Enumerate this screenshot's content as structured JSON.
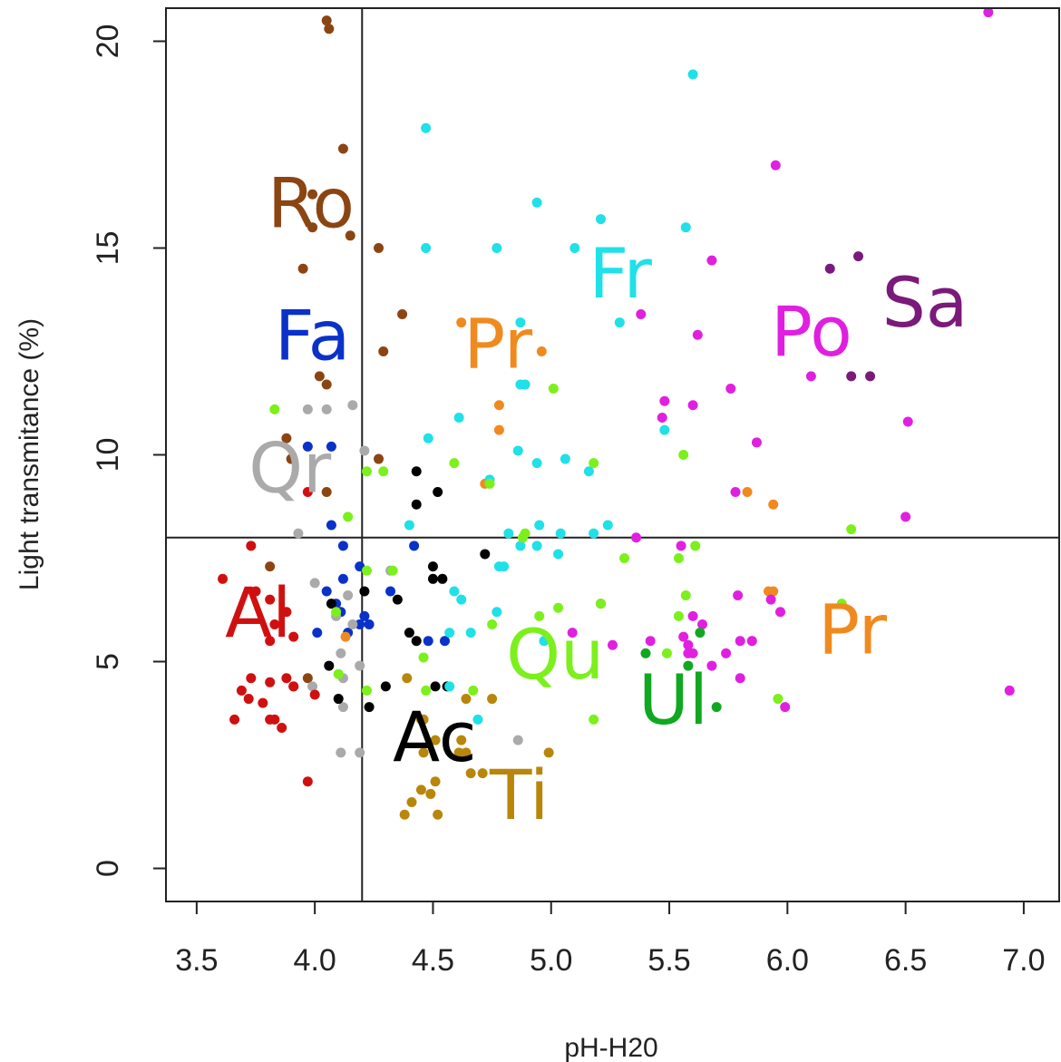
{
  "chart_data": {
    "type": "scatter",
    "xlabel": "pH-H20",
    "ylabel": "Light transmitance (%)",
    "xlim": [
      3.37,
      7.15
    ],
    "ylim": [
      -0.8,
      20.8
    ],
    "x_ticks": [
      "3.5",
      "4.0",
      "4.5",
      "5.0",
      "5.5",
      "6.0",
      "6.5",
      "7.0"
    ],
    "y_ticks": [
      "0",
      "5",
      "10",
      "15",
      "20"
    ],
    "reference_lines": {
      "x": 4.2,
      "y": 8.0
    },
    "grid": false,
    "legend": "none",
    "series": [
      {
        "name": "Ro",
        "color": "#8B4513",
        "label_at": [
          3.8,
          15.5
        ],
        "points": [
          [
            4.05,
            20.5
          ],
          [
            4.06,
            20.3
          ],
          [
            4.12,
            17.4
          ],
          [
            3.99,
            16.3
          ],
          [
            3.99,
            15.5
          ],
          [
            4.15,
            15.3
          ],
          [
            3.95,
            14.5
          ],
          [
            4.27,
            15.0
          ],
          [
            4.37,
            13.4
          ],
          [
            4.29,
            12.5
          ],
          [
            4.02,
            11.9
          ],
          [
            4.05,
            11.7
          ],
          [
            3.88,
            10.4
          ],
          [
            3.9,
            9.9
          ],
          [
            4.27,
            9.9
          ],
          [
            4.05,
            9.1
          ],
          [
            3.81,
            7.3
          ],
          [
            3.97,
            4.6
          ]
        ]
      },
      {
        "name": "Fa",
        "color": "#0A32C8",
        "label_at": [
          3.83,
          12.3
        ],
        "points": [
          [
            3.97,
            10.2
          ],
          [
            4.07,
            10.2
          ],
          [
            4.07,
            8.3
          ],
          [
            4.12,
            7.8
          ],
          [
            4.19,
            7.3
          ],
          [
            4.12,
            7.0
          ],
          [
            4.05,
            6.7
          ],
          [
            4.09,
            6.4
          ],
          [
            4.11,
            6.2
          ],
          [
            4.21,
            6.1
          ],
          [
            4.19,
            5.9
          ],
          [
            4.23,
            5.9
          ],
          [
            4.01,
            5.7
          ],
          [
            4.14,
            5.7
          ],
          [
            4.42,
            7.8
          ],
          [
            4.32,
            6.7
          ],
          [
            4.48,
            5.5
          ],
          [
            4.55,
            5.5
          ]
        ]
      },
      {
        "name": "Qr",
        "color": "#AAAAAA",
        "label_at": [
          3.72,
          9.1
        ],
        "points": [
          [
            4.05,
            11.1
          ],
          [
            3.97,
            11.1
          ],
          [
            4.16,
            11.2
          ],
          [
            4.21,
            10.1
          ],
          [
            3.93,
            8.1
          ],
          [
            4.0,
            6.9
          ],
          [
            4.14,
            6.6
          ],
          [
            4.09,
            6.1
          ],
          [
            4.16,
            5.9
          ],
          [
            4.11,
            5.2
          ],
          [
            4.12,
            4.6
          ],
          [
            4.19,
            4.9
          ],
          [
            3.99,
            4.4
          ],
          [
            4.12,
            3.9
          ],
          [
            4.11,
            2.8
          ],
          [
            4.19,
            2.8
          ],
          [
            4.86,
            3.1
          ],
          [
            4.32,
            7.2
          ]
        ]
      },
      {
        "name": "Al",
        "color": "#D01010",
        "label_at": [
          3.62,
          5.6
        ],
        "points": [
          [
            3.73,
            7.8
          ],
          [
            3.61,
            7.0
          ],
          [
            3.81,
            6.5
          ],
          [
            3.75,
            6.7
          ],
          [
            3.88,
            6.2
          ],
          [
            3.83,
            5.9
          ],
          [
            3.81,
            5.5
          ],
          [
            3.91,
            5.6
          ],
          [
            3.73,
            4.6
          ],
          [
            3.81,
            4.5
          ],
          [
            3.88,
            4.6
          ],
          [
            3.91,
            4.4
          ],
          [
            3.69,
            4.3
          ],
          [
            3.72,
            4.1
          ],
          [
            3.78,
            4.0
          ],
          [
            3.83,
            3.6
          ],
          [
            3.81,
            3.6
          ],
          [
            3.86,
            3.4
          ],
          [
            3.66,
            3.6
          ],
          [
            3.97,
            2.1
          ],
          [
            3.97,
            9.1
          ],
          [
            3.91,
            4.4
          ],
          [
            4.0,
            4.2
          ]
        ]
      },
      {
        "name": "Ac",
        "color": "#000000",
        "label_at": [
          4.33,
          2.6
        ],
        "points": [
          [
            4.43,
            9.6
          ],
          [
            4.52,
            9.1
          ],
          [
            4.43,
            8.8
          ],
          [
            4.72,
            7.6
          ],
          [
            4.5,
            7.3
          ],
          [
            4.5,
            7.0
          ],
          [
            4.54,
            7.0
          ],
          [
            4.21,
            6.7
          ],
          [
            4.35,
            6.5
          ],
          [
            4.07,
            6.4
          ],
          [
            4.4,
            5.7
          ],
          [
            4.06,
            4.9
          ],
          [
            4.3,
            4.4
          ],
          [
            4.51,
            4.4
          ],
          [
            4.56,
            4.4
          ],
          [
            4.1,
            4.1
          ],
          [
            4.23,
            3.9
          ],
          [
            4.43,
            5.5
          ]
        ]
      },
      {
        "name": "Ti",
        "color": "#B8860B",
        "label_at": [
          4.74,
          1.2
        ],
        "points": [
          [
            4.39,
            4.6
          ],
          [
            4.45,
            3.6
          ],
          [
            4.46,
            3.6
          ],
          [
            4.51,
            3.1
          ],
          [
            4.61,
            2.8
          ],
          [
            4.64,
            2.8
          ],
          [
            4.62,
            3.1
          ],
          [
            4.46,
            2.8
          ],
          [
            4.51,
            2.1
          ],
          [
            4.49,
            1.8
          ],
          [
            4.41,
            1.6
          ],
          [
            4.45,
            1.9
          ],
          [
            4.38,
            1.3
          ],
          [
            4.52,
            1.3
          ],
          [
            4.66,
            2.3
          ],
          [
            4.71,
            2.3
          ],
          [
            4.64,
            4.1
          ],
          [
            4.75,
            4.1
          ],
          [
            4.99,
            2.8
          ]
        ]
      },
      {
        "name": "Pr",
        "color": "#F08A1E",
        "label_at": [
          4.63,
          12.1
        ],
        "points": [
          [
            4.62,
            13.2
          ],
          [
            4.96,
            12.5
          ],
          [
            4.78,
            11.2
          ],
          [
            4.78,
            10.6
          ],
          [
            4.72,
            9.3
          ],
          [
            5.83,
            9.1
          ],
          [
            5.94,
            8.8
          ],
          [
            5.92,
            6.7
          ],
          [
            5.94,
            6.7
          ],
          [
            5.85,
            5.5
          ],
          [
            4.13,
            5.6
          ]
        ]
      },
      {
        "name": "Pr",
        "color": "#F08A1E",
        "label_at": [
          6.13,
          5.2
        ],
        "points": []
      },
      {
        "name": "Fr",
        "color": "#20E0E8",
        "label_at": [
          5.16,
          13.8
        ],
        "points": [
          [
            4.47,
            17.9
          ],
          [
            5.6,
            19.2
          ],
          [
            4.94,
            16.1
          ],
          [
            5.21,
            15.7
          ],
          [
            5.57,
            15.5
          ],
          [
            4.47,
            15.0
          ],
          [
            4.77,
            15.0
          ],
          [
            5.1,
            15.0
          ],
          [
            5.29,
            13.2
          ],
          [
            4.87,
            13.2
          ],
          [
            4.89,
            11.7
          ],
          [
            4.87,
            11.7
          ],
          [
            4.61,
            10.9
          ],
          [
            4.48,
            10.4
          ],
          [
            4.86,
            10.1
          ],
          [
            4.94,
            9.8
          ],
          [
            5.06,
            9.9
          ],
          [
            5.16,
            9.6
          ],
          [
            5.48,
            10.6
          ],
          [
            4.74,
            9.4
          ],
          [
            4.95,
            8.3
          ],
          [
            4.82,
            8.1
          ],
          [
            5.04,
            8.1
          ],
          [
            5.24,
            8.3
          ],
          [
            5.18,
            8.1
          ],
          [
            4.87,
            7.8
          ],
          [
            4.94,
            7.8
          ],
          [
            5.03,
            7.6
          ],
          [
            4.8,
            7.3
          ],
          [
            4.78,
            7.3
          ],
          [
            4.59,
            6.7
          ],
          [
            4.62,
            6.5
          ],
          [
            4.66,
            5.7
          ],
          [
            4.57,
            5.7
          ],
          [
            4.77,
            6.2
          ],
          [
            4.97,
            5.5
          ],
          [
            4.57,
            4.4
          ],
          [
            4.69,
            3.6
          ],
          [
            4.4,
            8.3
          ]
        ]
      },
      {
        "name": "Po",
        "color": "#E020E0",
        "label_at": [
          5.93,
          12.4
        ],
        "points": [
          [
            6.85,
            20.7
          ],
          [
            5.95,
            17.0
          ],
          [
            5.68,
            14.7
          ],
          [
            5.38,
            13.4
          ],
          [
            5.62,
            12.9
          ],
          [
            6.1,
            11.9
          ],
          [
            5.76,
            11.6
          ],
          [
            5.48,
            11.3
          ],
          [
            5.6,
            11.2
          ],
          [
            5.47,
            10.9
          ],
          [
            6.51,
            10.8
          ],
          [
            5.87,
            10.3
          ],
          [
            5.78,
            9.1
          ],
          [
            5.36,
            8.0
          ],
          [
            6.5,
            8.5
          ],
          [
            5.55,
            7.8
          ],
          [
            5.21,
            6.4
          ],
          [
            5.6,
            6.1
          ],
          [
            5.64,
            5.9
          ],
          [
            5.79,
            6.6
          ],
          [
            5.97,
            6.2
          ],
          [
            5.93,
            6.5
          ],
          [
            5.09,
            5.7
          ],
          [
            5.26,
            5.4
          ],
          [
            5.42,
            5.5
          ],
          [
            5.56,
            5.6
          ],
          [
            5.58,
            5.4
          ],
          [
            5.68,
            4.9
          ],
          [
            5.74,
            5.2
          ],
          [
            5.8,
            5.5
          ],
          [
            5.8,
            4.6
          ],
          [
            5.85,
            5.5
          ],
          [
            5.58,
            5.2
          ],
          [
            5.6,
            5.2
          ],
          [
            5.99,
            3.9
          ],
          [
            6.94,
            4.3
          ]
        ]
      },
      {
        "name": "Sa",
        "color": "#7A1A7A",
        "label_at": [
          6.4,
          13.1
        ],
        "points": [
          [
            6.3,
            14.8
          ],
          [
            6.18,
            14.5
          ],
          [
            6.27,
            11.9
          ],
          [
            6.35,
            11.9
          ]
        ]
      },
      {
        "name": "Qu",
        "color": "#7CF01C",
        "label_at": [
          4.81,
          4.6
        ],
        "points": [
          [
            3.83,
            11.1
          ],
          [
            4.22,
            9.6
          ],
          [
            4.29,
            9.6
          ],
          [
            4.14,
            8.5
          ],
          [
            4.59,
            9.8
          ],
          [
            4.74,
            9.3
          ],
          [
            5.01,
            11.6
          ],
          [
            5.18,
            9.8
          ],
          [
            4.09,
            6.2
          ],
          [
            4.22,
            7.2
          ],
          [
            4.33,
            7.2
          ],
          [
            4.88,
            8.0
          ],
          [
            4.89,
            8.1
          ],
          [
            5.31,
            7.5
          ],
          [
            5.03,
            6.3
          ],
          [
            5.21,
            6.4
          ],
          [
            5.54,
            7.5
          ],
          [
            5.56,
            10.0
          ],
          [
            5.61,
            7.8
          ],
          [
            5.54,
            6.1
          ],
          [
            5.57,
            6.6
          ],
          [
            6.23,
            6.4
          ],
          [
            6.27,
            8.2
          ],
          [
            5.96,
            4.1
          ],
          [
            5.18,
            3.6
          ],
          [
            4.75,
            5.9
          ],
          [
            4.95,
            6.1
          ],
          [
            4.46,
            5.1
          ],
          [
            4.22,
            4.3
          ],
          [
            4.1,
            4.7
          ],
          [
            4.47,
            4.3
          ],
          [
            4.67,
            4.3
          ],
          [
            5.49,
            5.2
          ]
        ]
      },
      {
        "name": "Ul",
        "color": "#10A820",
        "label_at": [
          5.37,
          3.5
        ],
        "points": [
          [
            5.63,
            5.7
          ],
          [
            5.4,
            5.2
          ],
          [
            5.58,
            4.9
          ],
          [
            5.7,
            3.9
          ]
        ]
      }
    ]
  }
}
